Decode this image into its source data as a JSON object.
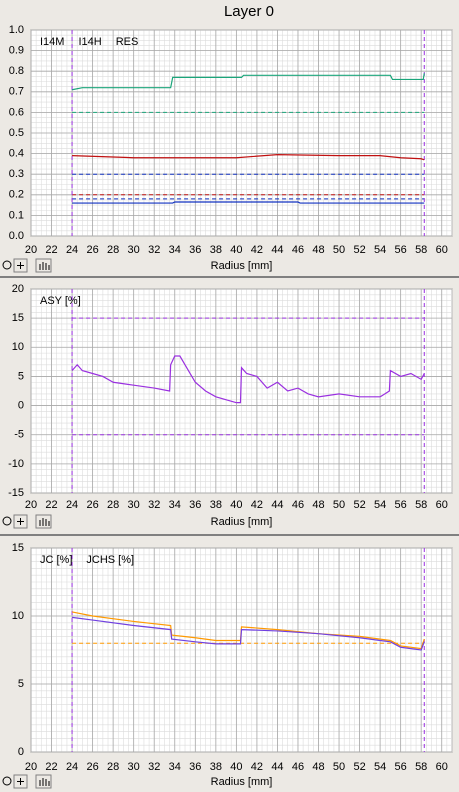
{
  "title": "Layer 0",
  "chart_data": [
    {
      "type": "line",
      "x_label": "Radius [mm]",
      "xlim": [
        20,
        61
      ],
      "xticks": [
        20,
        22,
        24,
        26,
        28,
        30,
        32,
        34,
        36,
        38,
        40,
        42,
        44,
        46,
        48,
        50,
        52,
        54,
        56,
        58,
        60
      ],
      "ylim": [
        0,
        1
      ],
      "yticks": [
        {
          "value": 0,
          "label": "0.0"
        },
        0.1,
        0.2,
        0.3,
        0.4,
        0.5,
        0.6,
        0.7,
        0.8,
        0.9,
        {
          "value": 1,
          "label": "1.0"
        }
      ],
      "grid": true,
      "marker_color": "#9a30e0",
      "markers_x": [
        24,
        58.3
      ],
      "reference_lines": [
        {
          "value": 0.6,
          "color": "#1aa57a"
        },
        {
          "value": 0.3,
          "color": "#1030c0"
        },
        {
          "value": 0.2,
          "color": "#c01010"
        },
        {
          "value": 0.18,
          "color": "#1030c0"
        }
      ],
      "series": [
        {
          "name": "I14M",
          "color": "#1aa57a",
          "x": [
            24,
            25,
            33.6,
            33.8,
            40.5,
            40.7,
            55,
            55.2,
            58.2,
            58.3
          ],
          "values": [
            0.71,
            0.72,
            0.72,
            0.77,
            0.77,
            0.78,
            0.78,
            0.76,
            0.76,
            0.79
          ]
        },
        {
          "name": "I14H",
          "color": "#1030c0",
          "x": [
            24,
            33.8,
            34,
            46,
            46.2,
            58.3
          ],
          "values": [
            0.16,
            0.16,
            0.165,
            0.165,
            0.16,
            0.16
          ]
        },
        {
          "name": "RES",
          "color": "#c01010",
          "x": [
            24,
            30,
            36,
            40,
            44,
            50,
            54,
            56,
            58,
            58.3
          ],
          "values": [
            0.39,
            0.38,
            0.38,
            0.38,
            0.395,
            0.39,
            0.39,
            0.38,
            0.375,
            0.37
          ]
        }
      ]
    },
    {
      "type": "line",
      "x_label": "Radius [mm]",
      "xlim": [
        20,
        61
      ],
      "xticks": [
        20,
        22,
        24,
        26,
        28,
        30,
        32,
        34,
        36,
        38,
        40,
        42,
        44,
        46,
        48,
        50,
        52,
        54,
        56,
        58,
        60
      ],
      "ylim": [
        -15,
        20
      ],
      "yticks": [
        -15,
        -10,
        -5,
        0,
        5,
        10,
        15,
        20
      ],
      "grid": true,
      "marker_color": "#9a30e0",
      "markers_x": [
        24,
        58.3
      ],
      "reference_lines": [
        {
          "value": 15,
          "color": "#9a30e0"
        },
        {
          "value": -5,
          "color": "#9a30e0"
        }
      ],
      "series": [
        {
          "name": "ASY [%]",
          "color": "#9a30e0",
          "x": [
            24,
            24.5,
            25,
            26,
            27,
            28,
            30,
            32,
            33.5,
            33.6,
            34,
            34.5,
            35,
            36,
            37,
            38,
            40,
            40.4,
            40.5,
            41,
            42,
            43,
            44,
            45,
            46,
            47,
            48,
            50,
            52,
            54,
            54.9,
            55,
            56,
            57,
            58,
            58.3
          ],
          "values": [
            6,
            7,
            6,
            5.5,
            5,
            4,
            3.5,
            3,
            2.5,
            7,
            8.5,
            8.5,
            7,
            4,
            2.5,
            1.5,
            0.5,
            0.5,
            6.5,
            5.5,
            5,
            3,
            4,
            2.5,
            3,
            2,
            1.5,
            2,
            1.5,
            1.5,
            2.5,
            6,
            5,
            5.5,
            4.5,
            5.5
          ]
        }
      ]
    },
    {
      "type": "line",
      "x_label": "Radius [mm]",
      "xlim": [
        20,
        61
      ],
      "xticks": [
        20,
        22,
        24,
        26,
        28,
        30,
        32,
        34,
        36,
        38,
        40,
        42,
        44,
        46,
        48,
        50,
        52,
        54,
        56,
        58,
        60
      ],
      "ylim": [
        0,
        15
      ],
      "yticks": [
        0,
        5,
        10,
        15
      ],
      "grid": true,
      "marker_color": "#9a30e0",
      "markers_x": [
        24,
        58.3
      ],
      "reference_lines": [
        {
          "value": 8,
          "color": "#ff9900"
        }
      ],
      "series": [
        {
          "name": "JC [%]",
          "color": "#ff9900",
          "x": [
            24,
            26,
            30,
            33.6,
            33.7,
            36,
            38,
            40.4,
            40.5,
            44,
            48,
            52,
            55,
            56,
            58,
            58.3
          ],
          "values": [
            10.3,
            10,
            9.6,
            9.3,
            8.6,
            8.4,
            8.2,
            8.2,
            9.2,
            9,
            8.7,
            8.5,
            8.2,
            7.8,
            7.6,
            8.3
          ]
        },
        {
          "name": "JCHS [%]",
          "color": "#7040e0",
          "x": [
            24,
            26,
            30,
            33.6,
            33.7,
            36,
            38,
            40.4,
            40.5,
            44,
            48,
            52,
            55,
            56,
            58,
            58.3
          ],
          "values": [
            9.9,
            9.7,
            9.3,
            9,
            8.3,
            8.1,
            7.95,
            7.95,
            9,
            8.9,
            8.7,
            8.4,
            8.1,
            7.7,
            7.5,
            8.1
          ]
        }
      ]
    }
  ]
}
